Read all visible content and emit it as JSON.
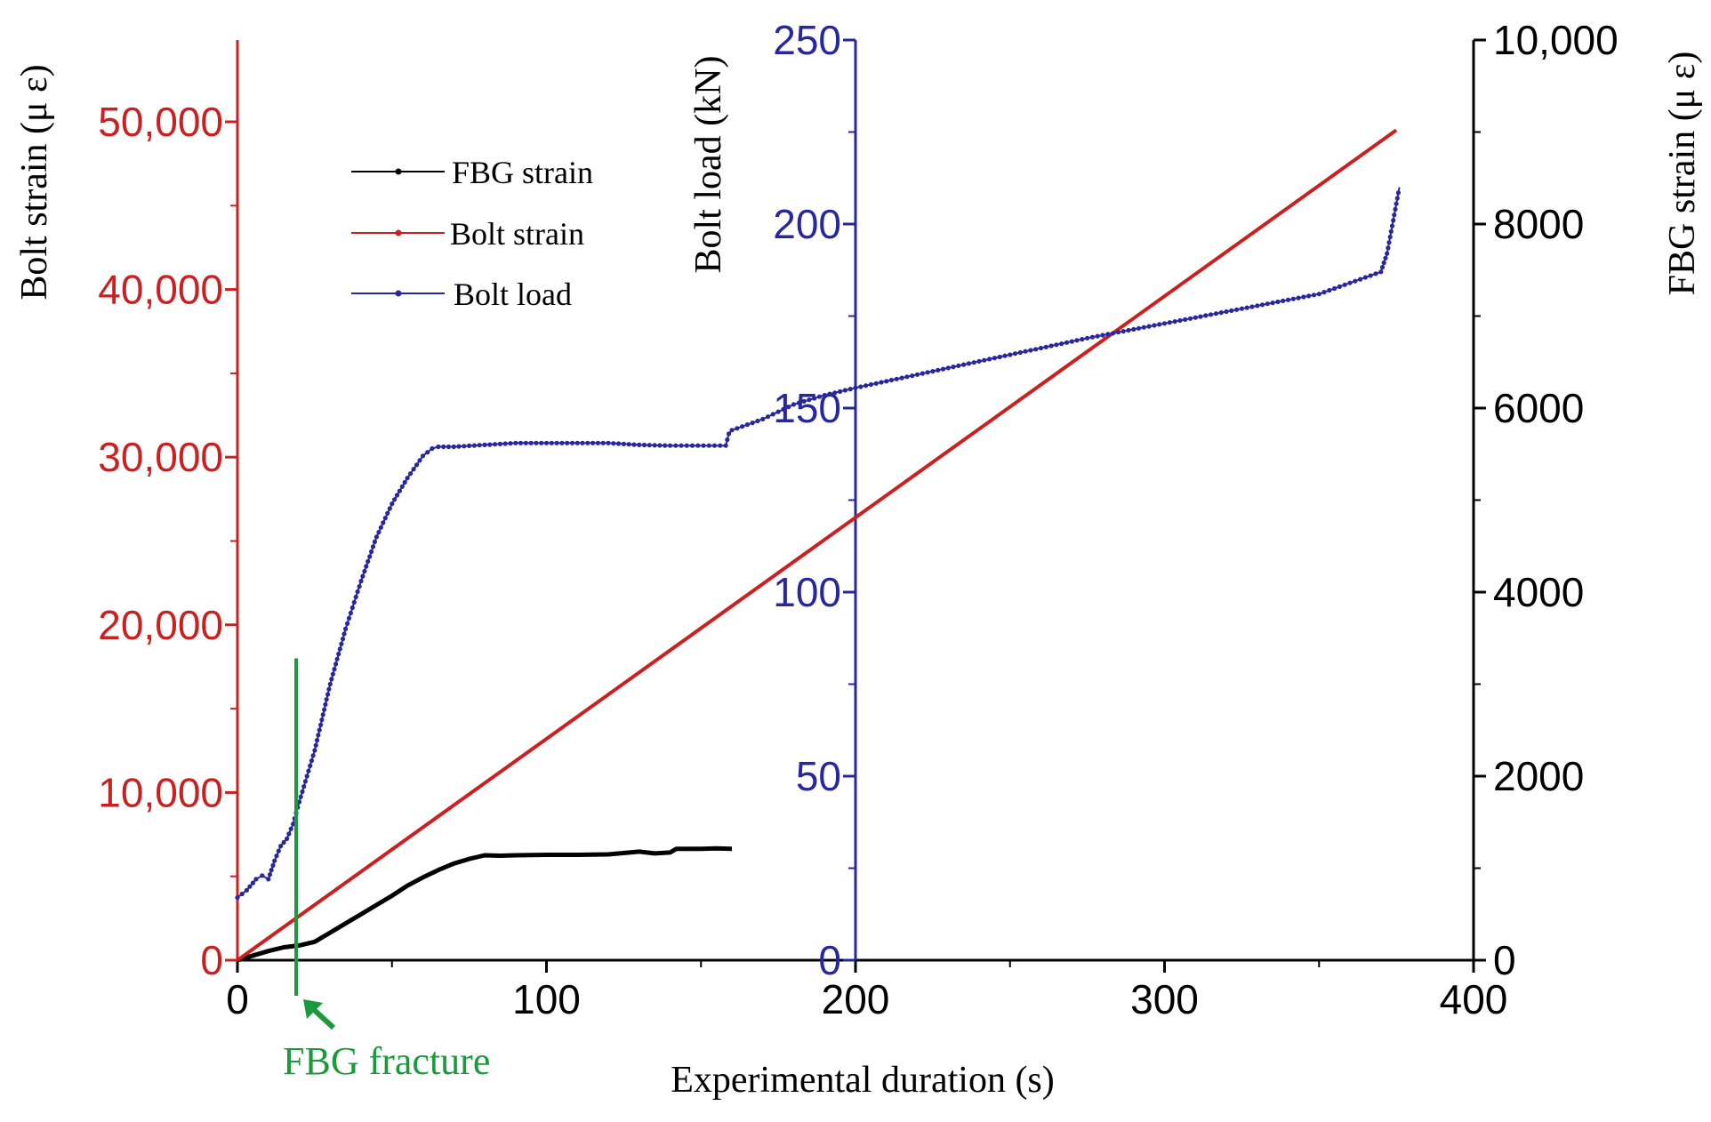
{
  "chart_data": {
    "type": "line",
    "title": "",
    "xlabel": "Experimental duration (s)",
    "xlim": [
      0,
      400
    ],
    "x_ticks": [
      0,
      100,
      200,
      300,
      400
    ],
    "x_tick_labels": [
      "0",
      "100",
      "200",
      "300",
      "400"
    ],
    "axes": {
      "bolt_strain": {
        "label": "Bolt strain (μ ε)",
        "color": "#cc1f1f",
        "lim": [
          0,
          55000
        ],
        "ticks": [
          0,
          10000,
          20000,
          30000,
          40000,
          50000
        ],
        "tick_labels": [
          "0",
          "10,000",
          "20,000",
          "30,000",
          "40,000",
          "50,000"
        ]
      },
      "bolt_load": {
        "label": "Bolt load (kN)",
        "color": "#27279e",
        "lim": [
          0,
          250
        ],
        "ticks": [
          0,
          50,
          100,
          150,
          200,
          250
        ],
        "tick_labels": [
          "0",
          "50",
          "100",
          "150",
          "200",
          "250"
        ]
      },
      "fbg_strain": {
        "label": "FBG strain (μ ε)",
        "color": "#000000",
        "lim": [
          0,
          10000
        ],
        "ticks": [
          0,
          2000,
          4000,
          6000,
          8000,
          10000
        ],
        "tick_labels": [
          "0",
          "2000",
          "4000",
          "6000",
          "8000",
          "10,000"
        ]
      }
    },
    "legend": {
      "position": "top-left",
      "entries": [
        "FBG strain",
        "Bolt strain",
        "Bolt load"
      ]
    },
    "series": [
      {
        "name": "FBG strain",
        "axis": "fbg_strain",
        "color": "#000000",
        "x": [
          0,
          5,
          10,
          15,
          20,
          25,
          30,
          35,
          40,
          45,
          50,
          55,
          60,
          65,
          70,
          75,
          80,
          85,
          90,
          100,
          110,
          120,
          130,
          135,
          140,
          142,
          150,
          155,
          160
        ],
        "values": [
          0,
          50,
          100,
          140,
          160,
          200,
          300,
          400,
          500,
          600,
          700,
          810,
          900,
          980,
          1050,
          1100,
          1140,
          1135,
          1140,
          1145,
          1145,
          1150,
          1180,
          1160,
          1170,
          1210,
          1210,
          1215,
          1210
        ]
      },
      {
        "name": "Bolt strain",
        "axis": "bolt_strain",
        "color": "#cc1f1f",
        "x": [
          0,
          375
        ],
        "values": [
          0,
          49500
        ]
      },
      {
        "name": "Bolt load",
        "axis": "bolt_load",
        "color": "#27279e",
        "x": [
          0,
          3,
          6,
          8,
          10,
          12,
          14,
          16,
          18,
          20,
          25,
          30,
          35,
          40,
          45,
          50,
          55,
          60,
          63,
          65,
          70,
          80,
          90,
          100,
          110,
          120,
          130,
          140,
          158,
          159,
          160,
          170,
          180,
          190,
          200,
          225,
          250,
          275,
          300,
          325,
          350,
          360,
          370,
          372,
          374,
          376
        ],
        "values": [
          17,
          19,
          22,
          23,
          22,
          27,
          31,
          33,
          37,
          43,
          57,
          75,
          90,
          103,
          115,
          124,
          131,
          137,
          139,
          139.5,
          139.5,
          140,
          140.5,
          140.5,
          140.5,
          140.5,
          140,
          139.8,
          139.8,
          143,
          144,
          147,
          151,
          153.5,
          155.5,
          160,
          164.5,
          169,
          173,
          177,
          181,
          184,
          187,
          192,
          201,
          210
        ]
      }
    ],
    "annotation": {
      "text": "FBG fracture",
      "x": 19,
      "color": "#1a9a3c",
      "bolt_strain_top": 18000
    }
  }
}
